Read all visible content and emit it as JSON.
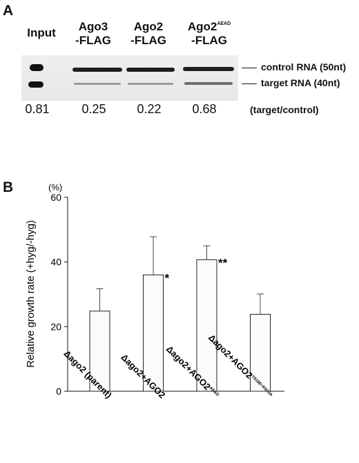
{
  "panel_a": {
    "letter": "A",
    "lanes": [
      {
        "line1": "Input",
        "line2": "",
        "sup": ""
      },
      {
        "line1": "Ago3",
        "line2": "-FLAG",
        "sup": ""
      },
      {
        "line1": "Ago2",
        "line2": "-FLAG",
        "sup": ""
      },
      {
        "line1": "Ago2",
        "line2": "-FLAG",
        "sup": "AEAD"
      }
    ],
    "band_labels": {
      "control": "control RNA (50nt)",
      "target": "target RNA (40nt)"
    },
    "ratios": [
      "0.81",
      "0.25",
      "0.22",
      "0.68"
    ],
    "ratio_note": "(target/control)"
  },
  "panel_b": {
    "letter": "B",
    "unit": "(%)",
    "chart_data": {
      "type": "bar",
      "ylabel": "Relative growth rate (+hyg/-hyg)",
      "ylim": [
        0,
        60
      ],
      "yticks": [
        0,
        20,
        40,
        60
      ],
      "categories": [
        {
          "main": "Δago2 (parent)",
          "sup": ""
        },
        {
          "main": "Δago2+AGO2",
          "sup": ""
        },
        {
          "main": "Δago2+AGO2",
          "sup": "AEAD"
        },
        {
          "main": "Δago2+AGO2",
          "sup": "Y619E+K623A"
        }
      ],
      "values": [
        24.8,
        36.0,
        40.7,
        23.8
      ],
      "errors": [
        6.9,
        11.8,
        4.3,
        6.3
      ],
      "significance": [
        "",
        "*",
        "**",
        ""
      ]
    }
  }
}
